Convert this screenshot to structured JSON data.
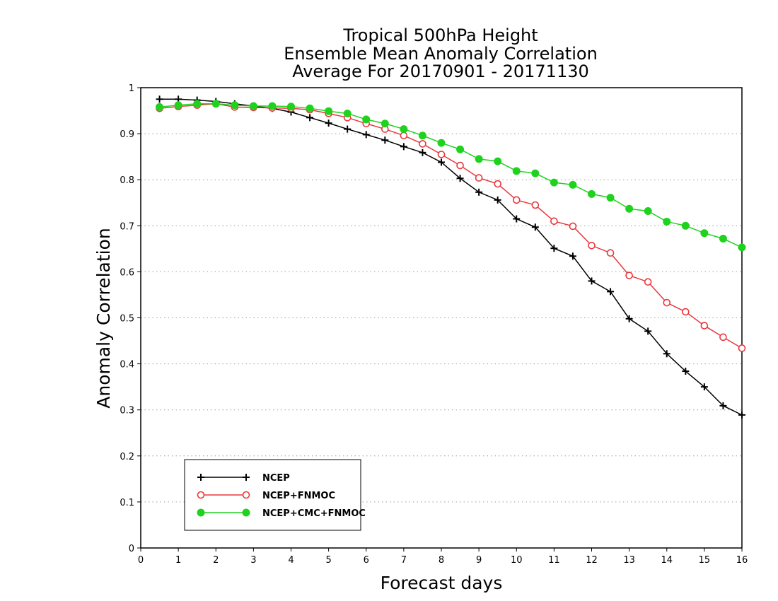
{
  "chart_data": {
    "type": "line",
    "title": [
      "Tropical 500hPa Height",
      "Ensemble Mean Anomaly Correlation",
      "Average For 20170901 - 20171130"
    ],
    "xlabel": "Forecast days",
    "ylabel": "Anomaly Correlation",
    "xlim": [
      0,
      16
    ],
    "ylim": [
      0,
      1
    ],
    "xticks": [
      "0",
      "1",
      "2",
      "3",
      "4",
      "5",
      "6",
      "7",
      "8",
      "9",
      "10",
      "11",
      "12",
      "13",
      "14",
      "15",
      "16"
    ],
    "yticks": [
      "0",
      "0.1",
      "0.2",
      "0.3",
      "0.4",
      "0.5",
      "0.6",
      "0.7",
      "0.8",
      "0.9",
      "1"
    ],
    "grid": "dotted horizontal",
    "legend_position": "bottom-left",
    "x": [
      0.5,
      1,
      1.5,
      2,
      2.5,
      3,
      3.5,
      4,
      4.5,
      5,
      5.5,
      6,
      6.5,
      7,
      7.5,
      8,
      8.5,
      9,
      9.5,
      10,
      10.5,
      11,
      11.5,
      12,
      12.5,
      13,
      13.5,
      14,
      14.5,
      15,
      15.5,
      16
    ],
    "series": [
      {
        "name": "NCEP",
        "color": "#000000",
        "marker": "plus",
        "values": [
          0.975,
          0.975,
          0.973,
          0.97,
          0.965,
          0.96,
          0.955,
          0.947,
          0.935,
          0.923,
          0.91,
          0.898,
          0.886,
          0.872,
          0.859,
          0.838,
          0.803,
          0.773,
          0.756,
          0.715,
          0.697,
          0.651,
          0.634,
          0.58,
          0.557,
          0.498,
          0.471,
          0.422,
          0.384,
          0.35,
          0.309,
          0.289
        ]
      },
      {
        "name": "NCEP+FNMOC",
        "color": "#e8383d",
        "marker": "open-circle",
        "values": [
          0.955,
          0.959,
          0.962,
          0.965,
          0.958,
          0.957,
          0.956,
          0.955,
          0.952,
          0.944,
          0.935,
          0.922,
          0.91,
          0.896,
          0.878,
          0.855,
          0.831,
          0.804,
          0.791,
          0.756,
          0.745,
          0.71,
          0.699,
          0.657,
          0.641,
          0.592,
          0.578,
          0.533,
          0.513,
          0.483,
          0.458,
          0.434
        ]
      },
      {
        "name": "NCEP+CMC+FNMOC",
        "color": "#1ed21e",
        "marker": "filled-circle",
        "values": [
          0.958,
          0.962,
          0.965,
          0.965,
          0.962,
          0.96,
          0.96,
          0.959,
          0.955,
          0.949,
          0.944,
          0.931,
          0.922,
          0.91,
          0.896,
          0.88,
          0.866,
          0.845,
          0.84,
          0.819,
          0.814,
          0.794,
          0.789,
          0.769,
          0.761,
          0.737,
          0.732,
          0.709,
          0.7,
          0.684,
          0.672,
          0.653
        ]
      }
    ]
  }
}
